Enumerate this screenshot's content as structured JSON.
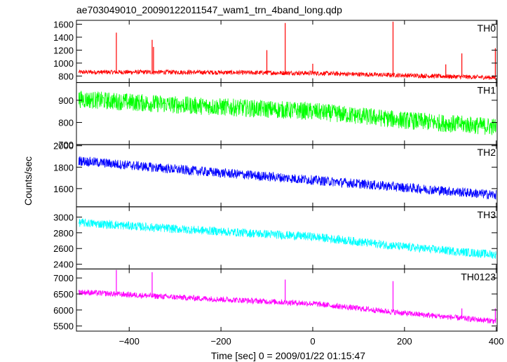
{
  "title": "ae703049010_20090122011547_wam1_trn_4band_long.qdp",
  "chart_data": {
    "type": "line",
    "title": "ae703049010_20090122011547_wam1_trn_4band_long.qdp",
    "xlabel": "Time [sec] 0 = 2009/01/22 01:15:47",
    "ylabel": "Counts/sec",
    "xlim": [
      -515,
      402
    ],
    "x_ticks": [
      -400,
      -200,
      0,
      200,
      400
    ],
    "x_tick_labels": [
      "−400",
      "−200",
      "0",
      "200",
      "400"
    ],
    "grid": false,
    "panels": [
      {
        "name": "TH0",
        "color": "#ff0000",
        "ylim": [
          700,
          1660
        ],
        "y_ticks": [
          800,
          1000,
          1200,
          1400,
          1600
        ],
        "y_tick_labels": [
          "800",
          "1000",
          "1200",
          "1400",
          "1600"
        ],
        "trend": [
          [
            -510,
            860
          ],
          [
            -300,
            860
          ],
          [
            0,
            845
          ],
          [
            200,
            810
          ],
          [
            400,
            775
          ]
        ],
        "noise": 35,
        "spikes": [
          [
            -428,
            1470
          ],
          [
            -350,
            1360
          ],
          [
            -347,
            1250
          ],
          [
            -60,
            1620
          ],
          [
            -100,
            1200
          ],
          [
            0,
            990
          ],
          [
            175,
            1640
          ],
          [
            290,
            980
          ],
          [
            325,
            1150
          ],
          [
            398,
            1230
          ]
        ]
      },
      {
        "name": "TH1",
        "color": "#00ff00",
        "ylim": [
          700,
          980
        ],
        "y_ticks": [
          700,
          800,
          900
        ],
        "y_tick_labels": [
          "700",
          "800",
          "900"
        ],
        "trend": [
          [
            -510,
            905
          ],
          [
            -300,
            880
          ],
          [
            0,
            850
          ],
          [
            200,
            810
          ],
          [
            400,
            780
          ]
        ],
        "noise": 40,
        "spikes": []
      },
      {
        "name": "TH2",
        "color": "#0000ff",
        "ylim": [
          1430,
          2010
        ],
        "y_ticks": [
          1600,
          1800,
          2000
        ],
        "y_tick_labels": [
          "1600",
          "1800",
          "2000"
        ],
        "trend": [
          [
            -510,
            1860
          ],
          [
            -300,
            1780
          ],
          [
            0,
            1680
          ],
          [
            200,
            1610
          ],
          [
            400,
            1540
          ]
        ],
        "noise": 45,
        "spikes": []
      },
      {
        "name": "TH3",
        "color": "#00ffff",
        "ylim": [
          2340,
          3130
        ],
        "y_ticks": [
          2400,
          2600,
          2800,
          3000
        ],
        "y_tick_labels": [
          "2400",
          "2600",
          "2800",
          "3000"
        ],
        "trend": [
          [
            -510,
            2930
          ],
          [
            -300,
            2850
          ],
          [
            0,
            2750
          ],
          [
            200,
            2620
          ],
          [
            400,
            2520
          ]
        ],
        "noise": 55,
        "spikes": []
      },
      {
        "name": "TH0123",
        "color": "#ff00ff",
        "ylim": [
          5340,
          7280
        ],
        "y_ticks": [
          5500,
          6000,
          6500,
          7000
        ],
        "y_tick_labels": [
          "5500",
          "6000",
          "6500",
          "7000"
        ],
        "trend": [
          [
            -510,
            6560
          ],
          [
            -300,
            6400
          ],
          [
            0,
            6200
          ],
          [
            200,
            5900
          ],
          [
            400,
            5650
          ]
        ],
        "noise": 90,
        "spikes": [
          [
            -428,
            7250
          ],
          [
            -350,
            7180
          ],
          [
            -60,
            6950
          ],
          [
            175,
            6900
          ],
          [
            325,
            6050
          ],
          [
            398,
            6050
          ]
        ]
      }
    ]
  }
}
